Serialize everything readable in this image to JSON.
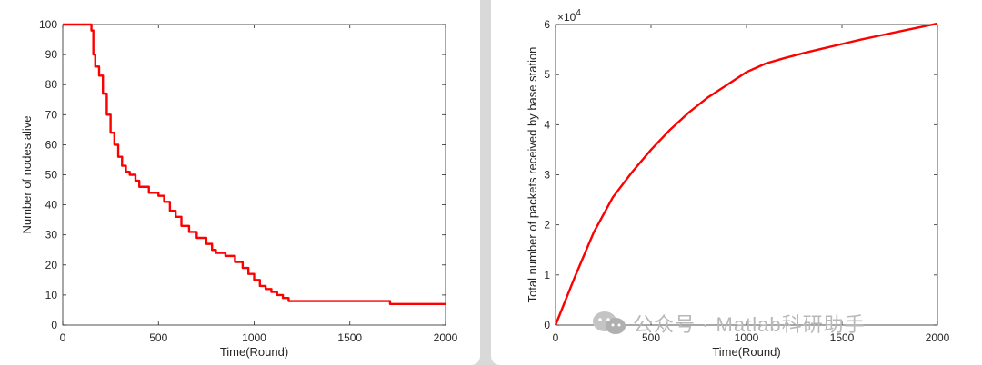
{
  "chart_data": [
    {
      "type": "line",
      "title": "",
      "xlabel": "Time(Round)",
      "ylabel": "Number of nodes alive",
      "xlim": [
        0,
        2000
      ],
      "ylim": [
        0,
        100
      ],
      "xticks": [
        "0",
        "500",
        "1000",
        "1500",
        "2000"
      ],
      "yticks": [
        "0",
        "10",
        "20",
        "30",
        "40",
        "50",
        "60",
        "70",
        "80",
        "90",
        "100"
      ],
      "grid": false,
      "color": "#ff0000",
      "series": [
        {
          "x": [
            0,
            130,
            150,
            160,
            170,
            190,
            210,
            230,
            250,
            270,
            290,
            310,
            330,
            350,
            380,
            400,
            450,
            500,
            530,
            560,
            590,
            620,
            660,
            700,
            750,
            780,
            800,
            850,
            900,
            940,
            970,
            1000,
            1030,
            1060,
            1090,
            1120,
            1150,
            1180,
            1200,
            1700,
            1710,
            2000
          ],
          "y": [
            100,
            100,
            98,
            90,
            86,
            83,
            77,
            70,
            64,
            60,
            56,
            53,
            51,
            50,
            48,
            46,
            44,
            43,
            41,
            38,
            36,
            33,
            31,
            29,
            27,
            25,
            24,
            23,
            21,
            19,
            17,
            15,
            13,
            12,
            11,
            10,
            9,
            8,
            8,
            8,
            7,
            7
          ]
        }
      ]
    },
    {
      "type": "line",
      "title": "",
      "xlabel": "Time(Round)",
      "ylabel": "Total number of packets received by base station",
      "xlim": [
        0,
        2000
      ],
      "ylim": [
        0,
        6
      ],
      "xticks": [
        "0",
        "500",
        "1000",
        "1500",
        "2000"
      ],
      "yticks": [
        "0",
        "1",
        "2",
        "3",
        "4",
        "5",
        "6"
      ],
      "multiplier_base": "×10",
      "multiplier_exp": "4",
      "grid": false,
      "color": "#ff0000",
      "series": [
        {
          "x": [
            0,
            100,
            200,
            300,
            400,
            500,
            600,
            700,
            800,
            900,
            1000,
            1100,
            1200,
            1300,
            1400,
            1500,
            1600,
            1700,
            1800,
            1900,
            2000
          ],
          "y": [
            0,
            0.95,
            1.85,
            2.55,
            3.05,
            3.5,
            3.9,
            4.25,
            4.55,
            4.8,
            5.05,
            5.22,
            5.33,
            5.43,
            5.52,
            5.61,
            5.7,
            5.78,
            5.86,
            5.94,
            6.02
          ]
        }
      ]
    }
  ],
  "watermark": {
    "text": "公众号 · Matlab科研助手",
    "icon": "wechat-icon"
  }
}
